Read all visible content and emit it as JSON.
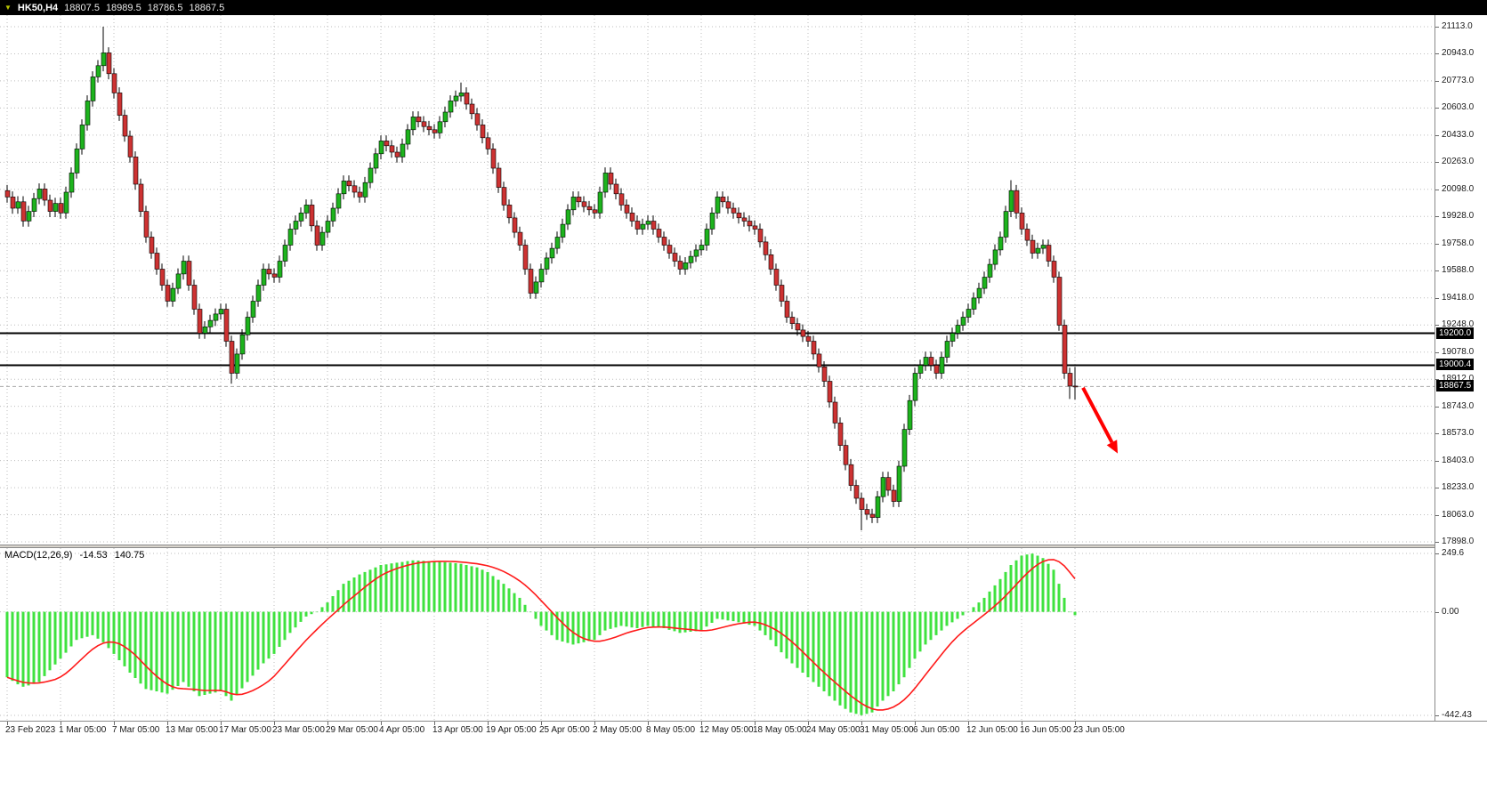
{
  "titlebar": {
    "collapse_icon": "▼",
    "symbol": "HK50,H4",
    "open": "18807.5",
    "high": "18989.5",
    "low": "18786.5",
    "close": "18867.5"
  },
  "macd_label": {
    "name": "MACD(12,26,9)",
    "value_main": "-14.53",
    "value_signal": "140.75"
  },
  "colors": {
    "bull": "#1db31d",
    "bear": "#cd3232",
    "wick": "#000000",
    "grid": "#bdbdbd",
    "macd_hist": "#3fe23f",
    "macd_signal": "#ff1a1a",
    "level_line": "#000000",
    "current_line": "#a8a8a8",
    "arrow": "#ff0000",
    "tag_bg": "#000000",
    "tag_fg": "#ffffff",
    "titlebar_bg": "#000000",
    "axis_text": "#1a1a1a"
  },
  "chart_data": {
    "type": "candlestick",
    "symbol": "HK50",
    "timeframe": "H4",
    "title": "HK50,H4 18807.5 18989.5 18786.5 18867.5",
    "grid": true,
    "price_axis": {
      "max": 21113.0,
      "min": 17898.0,
      "labels": [
        "21113.0",
        "20943.0",
        "20773.0",
        "20603.0",
        "20433.0",
        "20263.0",
        "20098.0",
        "19928.0",
        "19758.0",
        "19588.0",
        "19418.0",
        "19248.0",
        "19078.0",
        "18912.0",
        "18743.0",
        "18573.0",
        "18403.0",
        "18233.0",
        "18063.0",
        "17898.0"
      ]
    },
    "time_axis": {
      "candles_per_label": 10,
      "labels": [
        "23 Feb 2023",
        "1 Mar 05:00",
        "7 Mar 05:00",
        "13 Mar 05:00",
        "17 Mar 05:00",
        "23 Mar 05:00",
        "29 Mar 05:00",
        "4 Apr 05:00",
        "13 Apr 05:00",
        "19 Apr 05:00",
        "25 Apr 05:00",
        "2 May 05:00",
        "8 May 05:00",
        "12 May 05:00",
        "18 May 05:00",
        "24 May 05:00",
        "31 May 05:00",
        "6 Jun 05:00",
        "12 Jun 05:00",
        "16 Jun 05:00",
        "23 Jun 05:00"
      ]
    },
    "levels": [
      {
        "price": 19200.0,
        "label": "19200.0"
      },
      {
        "price": 19000.4,
        "label": "19000.4"
      }
    ],
    "current_price": {
      "price": 18867.5,
      "label": "18867.5"
    },
    "candles": {
      "default_wick": 35,
      "closes": [
        20050,
        19980,
        20020,
        19900,
        19960,
        20040,
        20100,
        20030,
        19960,
        20010,
        19950,
        20080,
        20200,
        20350,
        20500,
        20650,
        20800,
        20870,
        20950,
        20820,
        20700,
        20560,
        20430,
        20300,
        20130,
        19960,
        19800,
        19700,
        19600,
        19500,
        19400,
        19480,
        19570,
        19650,
        19500,
        19350,
        19200,
        19240,
        19280,
        19320,
        19350,
        19150,
        18950,
        19070,
        19190,
        19300,
        19400,
        19500,
        19600,
        19570,
        19550,
        19650,
        19750,
        19850,
        19900,
        19950,
        20000,
        19870,
        19750,
        19830,
        19900,
        19980,
        20070,
        20150,
        20120,
        20080,
        20050,
        20140,
        20230,
        20320,
        20400,
        20370,
        20330,
        20300,
        20380,
        20470,
        20550,
        20520,
        20490,
        20470,
        20450,
        20520,
        20580,
        20650,
        20680,
        20700,
        20630,
        20570,
        20500,
        20420,
        20350,
        20230,
        20110,
        20000,
        19920,
        19830,
        19750,
        19600,
        19450,
        19520,
        19600,
        19670,
        19730,
        19800,
        19880,
        19970,
        20050,
        20020,
        19990,
        19970,
        19950,
        20080,
        20200,
        20130,
        20070,
        20000,
        19950,
        19900,
        19850,
        19880,
        19900,
        19850,
        19800,
        19750,
        19700,
        19650,
        19600,
        19640,
        19680,
        19720,
        19750,
        19850,
        19950,
        20050,
        20020,
        19980,
        19950,
        19920,
        19900,
        19870,
        19850,
        19770,
        19690,
        19600,
        19500,
        19400,
        19300,
        19260,
        19220,
        19180,
        19150,
        19070,
        18990,
        18900,
        18770,
        18640,
        18500,
        18380,
        18250,
        18170,
        18100,
        18070,
        18050,
        18180,
        18300,
        18220,
        18150,
        18370,
        18600,
        18780,
        18950,
        19000,
        19050,
        19000,
        18950,
        19050,
        19150,
        19200,
        19250,
        19300,
        19350,
        19420,
        19480,
        19550,
        19630,
        19720,
        19800,
        19960,
        20090,
        19950,
        19850,
        19780,
        19700,
        19730,
        19750,
        19650,
        19550,
        19250,
        18950,
        18870,
        18867.5
      ],
      "special_wicks": {
        "18": {
          "high": 21113.0
        },
        "42": {
          "low": 18885.0
        },
        "85": {
          "high": 20765.0
        },
        "160": {
          "low": 17970.0
        },
        "188": {
          "high": 20155.0
        },
        "199": {
          "low": 18790.0
        },
        "200": {
          "high": 18989.5,
          "low": 18786.5
        }
      }
    },
    "macd": {
      "params": "12,26,9",
      "last_main": -14.53,
      "last_signal": 140.75,
      "signal_period": 9,
      "scale_labels": [
        {
          "value": 249.6,
          "label": "249.6"
        },
        {
          "value": 0.0,
          "label": "0.00"
        },
        {
          "value": -442.43,
          "label": "-442.43"
        }
      ],
      "histogram": [
        -280,
        -295,
        -310,
        -320,
        -315,
        -308,
        -300,
        -275,
        -250,
        -225,
        -200,
        -175,
        -148,
        -120,
        -113,
        -107,
        -100,
        -115,
        -130,
        -155,
        -180,
        -207,
        -233,
        -260,
        -283,
        -307,
        -330,
        -335,
        -340,
        -345,
        -350,
        -333,
        -317,
        -300,
        -320,
        -340,
        -360,
        -355,
        -350,
        -345,
        -340,
        -360,
        -380,
        -353,
        -327,
        -300,
        -273,
        -247,
        -220,
        -200,
        -180,
        -150,
        -120,
        -90,
        -67,
        -43,
        -20,
        -10,
        0,
        20,
        40,
        67,
        93,
        120,
        133,
        147,
        160,
        170,
        180,
        190,
        200,
        203,
        207,
        210,
        213,
        217,
        220,
        219,
        218,
        216,
        215,
        213,
        212,
        210,
        208,
        205,
        200,
        195,
        190,
        180,
        170,
        153,
        137,
        120,
        100,
        80,
        60,
        30,
        0,
        -30,
        -60,
        -80,
        -100,
        -120,
        -127,
        -133,
        -140,
        -135,
        -130,
        -125,
        -120,
        -100,
        -80,
        -73,
        -67,
        -60,
        -63,
        -67,
        -70,
        -65,
        -60,
        -63,
        -67,
        -70,
        -77,
        -83,
        -90,
        -88,
        -85,
        -83,
        -80,
        -63,
        -47,
        -30,
        -33,
        -37,
        -40,
        -45,
        -50,
        -55,
        -60,
        -80,
        -100,
        -120,
        -147,
        -173,
        -200,
        -220,
        -240,
        -260,
        -280,
        -300,
        -320,
        -340,
        -360,
        -380,
        -400,
        -415,
        -430,
        -436,
        -442,
        -436,
        -430,
        -405,
        -380,
        -360,
        -340,
        -310,
        -280,
        -240,
        -200,
        -170,
        -140,
        -120,
        -100,
        -80,
        -60,
        -45,
        -30,
        -15,
        0,
        20,
        40,
        60,
        87,
        113,
        140,
        170,
        200,
        220,
        240,
        245,
        249,
        240,
        230,
        205,
        180,
        120,
        60,
        0,
        -14.53
      ]
    },
    "arrow": {
      "from": {
        "index": 201.5,
        "price": 18860
      },
      "to": {
        "index": 208,
        "price": 18450
      }
    }
  }
}
